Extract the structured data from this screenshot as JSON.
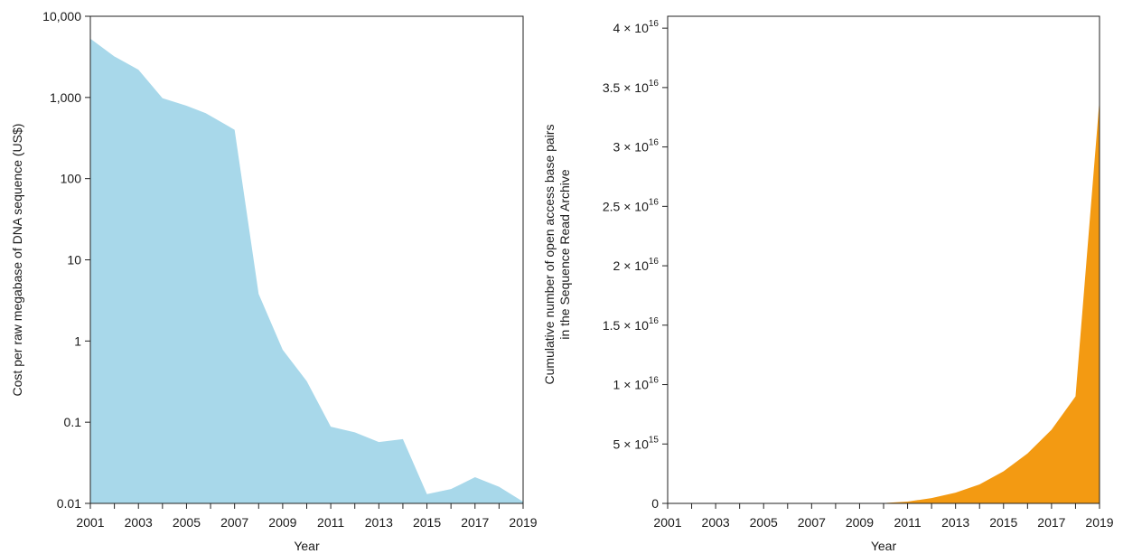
{
  "chart_data": [
    {
      "type": "area",
      "color": "#a8d8ea",
      "xlabel": "Year",
      "ylabel": "Cost per raw megabase of DNA sequence (US$)",
      "yscale": "log",
      "xlim": [
        2001,
        2019
      ],
      "ylim": [
        0.01,
        10000
      ],
      "x_ticks": [
        2001,
        2003,
        2005,
        2007,
        2009,
        2011,
        2013,
        2015,
        2017,
        2019
      ],
      "x_tick_labels": [
        "2001",
        "2003",
        "2005",
        "2007",
        "2009",
        "2011",
        "2013",
        "2015",
        "2017",
        "2019"
      ],
      "y_ticks": [
        0.01,
        0.1,
        1,
        10,
        100,
        1000,
        10000
      ],
      "y_tick_labels": [
        "0.01",
        "0.1",
        "1",
        "10",
        "100",
        "1,000",
        "10,000"
      ],
      "x": [
        2001,
        2002,
        2003,
        2004,
        2005,
        2005.8,
        2007,
        2008,
        2009,
        2010,
        2011,
        2012,
        2013,
        2014,
        2015,
        2016,
        2017,
        2018,
        2019
      ],
      "y": [
        5300,
        3200,
        2200,
        980,
        790,
        640,
        400,
        3.8,
        0.78,
        0.32,
        0.088,
        0.075,
        0.057,
        0.062,
        0.013,
        0.015,
        0.021,
        0.016,
        0.0105
      ]
    },
    {
      "type": "area",
      "color": "#f39a12",
      "xlabel": "Year",
      "ylabel_lines": [
        "Cumulative number of open access base pairs",
        "in the Sequence Read Archive"
      ],
      "xlim": [
        2001,
        2019
      ],
      "ylim": [
        0,
        4.1e+16
      ],
      "x_ticks": [
        2001,
        2003,
        2005,
        2007,
        2009,
        2011,
        2013,
        2015,
        2017,
        2019
      ],
      "x_tick_labels": [
        "2001",
        "2003",
        "2005",
        "2007",
        "2009",
        "2011",
        "2013",
        "2015",
        "2017",
        "2019"
      ],
      "y_ticks": [
        0,
        5000000000000000.0,
        1e+16,
        1.5e+16,
        2e+16,
        2.5e+16,
        3e+16,
        3.5e+16,
        4e+16
      ],
      "y_tick_labels": [
        {
          "mantissa": "0",
          "exp": ""
        },
        {
          "mantissa": "5 × 10",
          "exp": "15"
        },
        {
          "mantissa": "1 × 10",
          "exp": "16"
        },
        {
          "mantissa": "1.5 × 10",
          "exp": "16"
        },
        {
          "mantissa": "2 × 10",
          "exp": "16"
        },
        {
          "mantissa": "2.5 × 10",
          "exp": "16"
        },
        {
          "mantissa": "3 × 10",
          "exp": "16"
        },
        {
          "mantissa": "3.5 × 10",
          "exp": "16"
        },
        {
          "mantissa": "4 × 10",
          "exp": "16"
        }
      ],
      "x": [
        2001,
        2009,
        2010,
        2011,
        2012,
        2013,
        2014,
        2015,
        2016,
        2017,
        2018,
        2019
      ],
      "y": [
        0,
        0,
        30000000000000.0,
        150000000000000.0,
        450000000000000.0,
        900000000000000.0,
        1600000000000000.0,
        2700000000000000.0,
        4200000000000000.0,
        6200000000000000.0,
        9000000000000000.0,
        3.4e+16
      ]
    }
  ]
}
